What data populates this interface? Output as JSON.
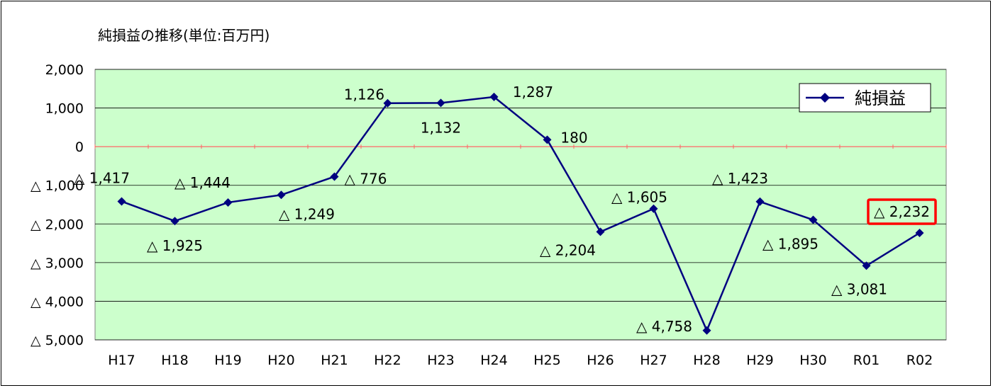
{
  "chart_data": {
    "type": "line",
    "title": "純損益の推移(単位:百万円)",
    "categories": [
      "H17",
      "H18",
      "H19",
      "H20",
      "H21",
      "H22",
      "H23",
      "H24",
      "H25",
      "H26",
      "H27",
      "H28",
      "H29",
      "H30",
      "R01",
      "R02"
    ],
    "series": [
      {
        "name": "純損益",
        "values": [
          -1417,
          -1925,
          -1444,
          -1249,
          -776,
          1126,
          1132,
          1287,
          180,
          -2204,
          -1605,
          -4758,
          -1423,
          -1895,
          -3081,
          -2232
        ],
        "labels": [
          "△ 1,417",
          "△ 1,925",
          "△ 1,444",
          "△ 1,249",
          "△ 776",
          "1,126",
          "1,132",
          "1,287",
          "180",
          "△ 2,204",
          "△ 1,605",
          "△ 4,758",
          "△ 1,423",
          "△ 1,895",
          "△ 3,081",
          "△ 2,232"
        ]
      }
    ],
    "ylim": [
      -5000,
      2000
    ],
    "yticks": [
      2000,
      1000,
      0,
      -1000,
      -2000,
      -3000,
      -4000,
      -5000
    ],
    "ytick_labels": [
      "2,000",
      "1,000",
      "0",
      "△ 1,000",
      "△ 2,000",
      "△ 3,000",
      "△ 4,000",
      "△ 5,000"
    ],
    "grid": true,
    "legend": "top-right",
    "highlighted_category": "R02",
    "colors": {
      "plot_background": "#ccffcc",
      "series_line": "#000080",
      "gridline": "#000000",
      "zero_line": "#ff6666",
      "highlight_box": "#ff0000"
    }
  }
}
